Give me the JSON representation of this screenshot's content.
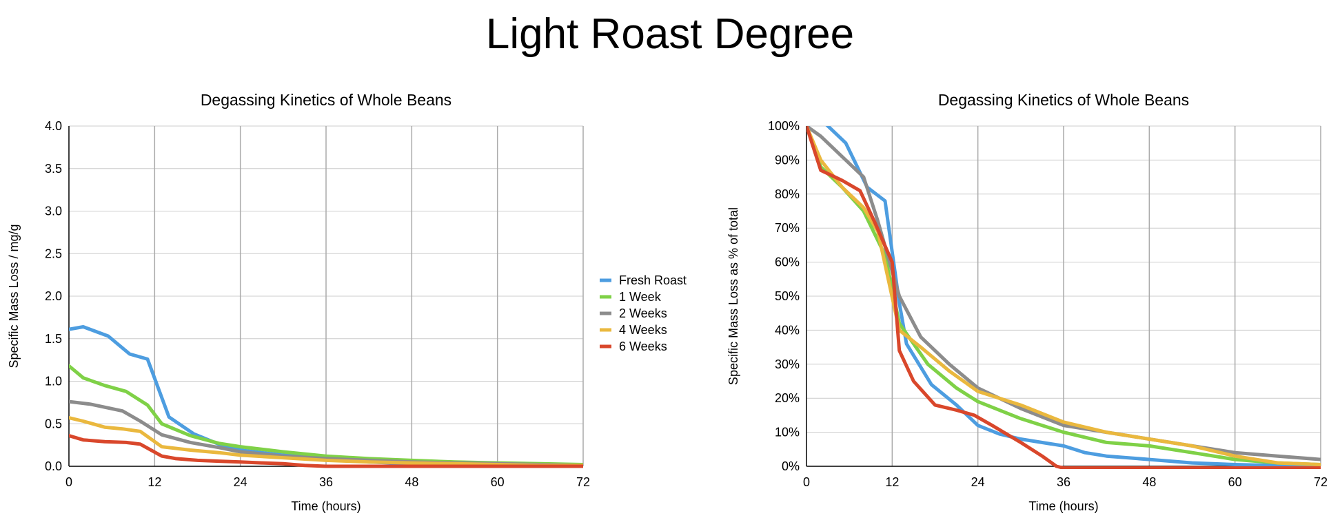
{
  "page_title": "Light Roast Degree",
  "chart_data": [
    {
      "type": "line",
      "title": "Degassing Kinetics of Whole Beans",
      "xlabel": "Time (hours)",
      "ylabel": "Specific Mass Loss / mg/g",
      "xlim": [
        0,
        72
      ],
      "ylim": [
        0,
        4.0
      ],
      "xticks": [
        "0",
        "12",
        "24",
        "36",
        "48",
        "60",
        "72"
      ],
      "yticks": [
        "0.0",
        "0.5",
        "1.0",
        "1.5",
        "2.0",
        "2.5",
        "3.0",
        "3.5",
        "4.0"
      ],
      "grid": true,
      "legend_position": "right",
      "series": [
        {
          "name": "Fresh Roast",
          "color": "#4d9de0",
          "x": [
            0,
            2,
            5.5,
            8.5,
            11,
            14,
            17.5,
            21,
            24,
            30,
            36,
            42,
            48,
            54,
            60,
            66,
            72
          ],
          "y": [
            1.61,
            1.64,
            1.53,
            1.32,
            1.26,
            0.58,
            0.38,
            0.26,
            0.19,
            0.13,
            0.1,
            0.05,
            0.03,
            0.02,
            0.01,
            0.0,
            0.0
          ]
        },
        {
          "name": "1 Week",
          "color": "#7fd147",
          "x": [
            0,
            2,
            5,
            8,
            11,
            13,
            17,
            21,
            24,
            30,
            36,
            42,
            48,
            54,
            60,
            66,
            72
          ],
          "y": [
            1.18,
            1.04,
            0.95,
            0.88,
            0.72,
            0.5,
            0.36,
            0.27,
            0.23,
            0.17,
            0.12,
            0.09,
            0.07,
            0.05,
            0.04,
            0.03,
            0.02
          ]
        },
        {
          "name": "2 Weeks",
          "color": "#8c8c8c",
          "x": [
            0,
            3,
            7.5,
            10,
            13,
            17,
            21,
            24,
            30,
            36,
            42,
            48,
            54,
            60,
            66,
            72
          ],
          "y": [
            0.76,
            0.73,
            0.65,
            0.53,
            0.37,
            0.28,
            0.22,
            0.17,
            0.12,
            0.09,
            0.07,
            0.05,
            0.04,
            0.03,
            0.02,
            0.01
          ]
        },
        {
          "name": "4 Weeks",
          "color": "#eab83e",
          "x": [
            0,
            2,
            5,
            7.5,
            10,
            13,
            17,
            21,
            24,
            30,
            36,
            42,
            48,
            54,
            60,
            66,
            72
          ],
          "y": [
            0.57,
            0.53,
            0.46,
            0.44,
            0.41,
            0.23,
            0.19,
            0.16,
            0.13,
            0.1,
            0.07,
            0.05,
            0.04,
            0.03,
            0.02,
            0.01,
            0.01
          ]
        },
        {
          "name": "6 Weeks",
          "color": "#d9472b",
          "x": [
            0,
            2,
            5,
            8,
            10,
            13,
            15,
            18,
            21,
            24,
            27,
            30,
            33,
            36,
            42,
            48,
            54,
            60,
            66,
            72
          ],
          "y": [
            0.36,
            0.31,
            0.29,
            0.28,
            0.26,
            0.12,
            0.09,
            0.07,
            0.06,
            0.05,
            0.04,
            0.03,
            0.01,
            0.0,
            0.0,
            0.0,
            0.0,
            0.0,
            0.0,
            0.0
          ]
        }
      ]
    },
    {
      "type": "line",
      "title": "Degassing Kinetics of Whole Beans",
      "xlabel": "Time (hours)",
      "ylabel": "Specific Mass Loss as % of total",
      "xlim": [
        0,
        72
      ],
      "ylim": [
        0,
        100
      ],
      "xticks": [
        "0",
        "12",
        "24",
        "36",
        "48",
        "60",
        "72"
      ],
      "yticks": [
        "0%",
        "10%",
        "20%",
        "30%",
        "40%",
        "50%",
        "60%",
        "70%",
        "80%",
        "90%",
        "100%"
      ],
      "grid": true,
      "series": [
        {
          "name": "Fresh Roast",
          "color": "#4d9de0",
          "x": [
            0,
            2,
            5.5,
            8.5,
            11,
            12,
            13,
            14,
            17.5,
            21,
            24,
            27,
            30,
            36,
            39,
            42,
            48,
            54,
            60,
            66,
            72
          ],
          "y": [
            100,
            102,
            95,
            82,
            78,
            63,
            48,
            36,
            24,
            18,
            12,
            9.5,
            8,
            6,
            4,
            3,
            2,
            1,
            0.5,
            0.2,
            0
          ]
        },
        {
          "name": "1 Week",
          "color": "#7fd147",
          "x": [
            0,
            2,
            5,
            8,
            11,
            13,
            17,
            21,
            24,
            30,
            36,
            42,
            48,
            54,
            60,
            66,
            72
          ],
          "y": [
            100,
            88,
            82,
            75,
            62,
            42,
            30,
            23,
            19,
            14,
            10,
            7,
            6,
            4,
            2,
            1,
            0.5
          ]
        },
        {
          "name": "2 Weeks",
          "color": "#8c8c8c",
          "x": [
            0,
            2,
            5,
            8,
            10,
            13,
            16,
            20,
            24,
            30,
            36,
            42,
            48,
            54,
            60,
            66,
            72
          ],
          "y": [
            100,
            97,
            91,
            85,
            72,
            50,
            38,
            30,
            23,
            17,
            12,
            10,
            8,
            6,
            4,
            3,
            2
          ]
        },
        {
          "name": "4 Weeks",
          "color": "#eab83e",
          "x": [
            0,
            2,
            5,
            8,
            10,
            13,
            16,
            20,
            24,
            30,
            36,
            42,
            48,
            54,
            60,
            66,
            72
          ],
          "y": [
            100,
            90,
            82,
            76,
            69,
            40,
            35,
            28,
            22,
            18,
            13,
            10,
            8,
            6,
            3,
            1,
            0.5
          ]
        },
        {
          "name": "6 Weeks",
          "color": "#d9472b",
          "x": [
            0,
            2,
            5,
            7.5,
            9.5,
            12,
            13,
            15,
            18,
            21,
            23.5,
            26,
            30,
            33,
            35,
            36,
            42,
            48,
            54,
            60,
            66,
            72
          ],
          "y": [
            100,
            87,
            84,
            81,
            72,
            60,
            34,
            25,
            18,
            16.5,
            15,
            12,
            7,
            3,
            0,
            -0.5,
            -0.5,
            -0.5,
            -0.5,
            -0.5,
            -0.5,
            -0.5
          ]
        }
      ]
    }
  ]
}
